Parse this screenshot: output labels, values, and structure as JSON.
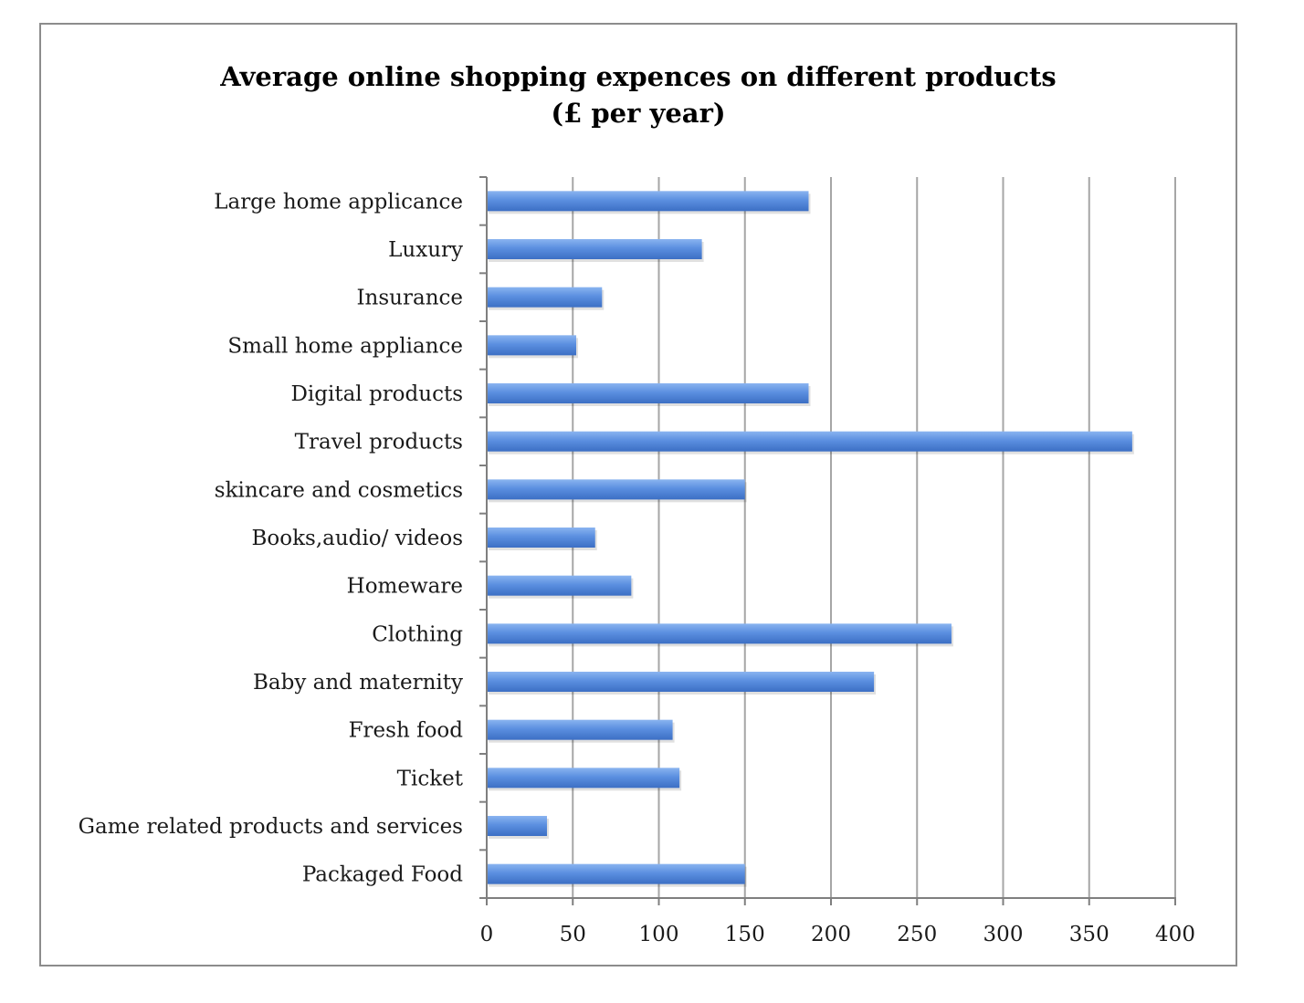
{
  "chart_data": {
    "type": "bar",
    "orientation": "horizontal",
    "title_lines": [
      "Average online shopping expences on different products",
      "(£ per year)"
    ],
    "xlabel": "",
    "ylabel": "",
    "categories": [
      "Large home applicance",
      "Luxury",
      "Insurance",
      "Small home appliance",
      "Digital products",
      "Travel products",
      "skincare and cosmetics",
      "Books,audio/ videos",
      "Homeware",
      "Clothing",
      "Baby and maternity",
      "Fresh food",
      "Ticket",
      "Game related products and services",
      "Packaged Food"
    ],
    "values": [
      187,
      125,
      67,
      52,
      187,
      375,
      150,
      63,
      84,
      270,
      225,
      108,
      112,
      35,
      150
    ],
    "xlim": [
      0,
      400
    ],
    "xticks": [
      0,
      50,
      100,
      150,
      200,
      250,
      300,
      350,
      400
    ],
    "grid": "vertical",
    "legend": "none",
    "colors": {
      "bar_light": "#8ab4f0",
      "bar_mid": "#5b8fe0",
      "bar_dark": "#3c6fc4",
      "grid": "#a6a6a6",
      "axis": "#7f7f7f"
    }
  }
}
